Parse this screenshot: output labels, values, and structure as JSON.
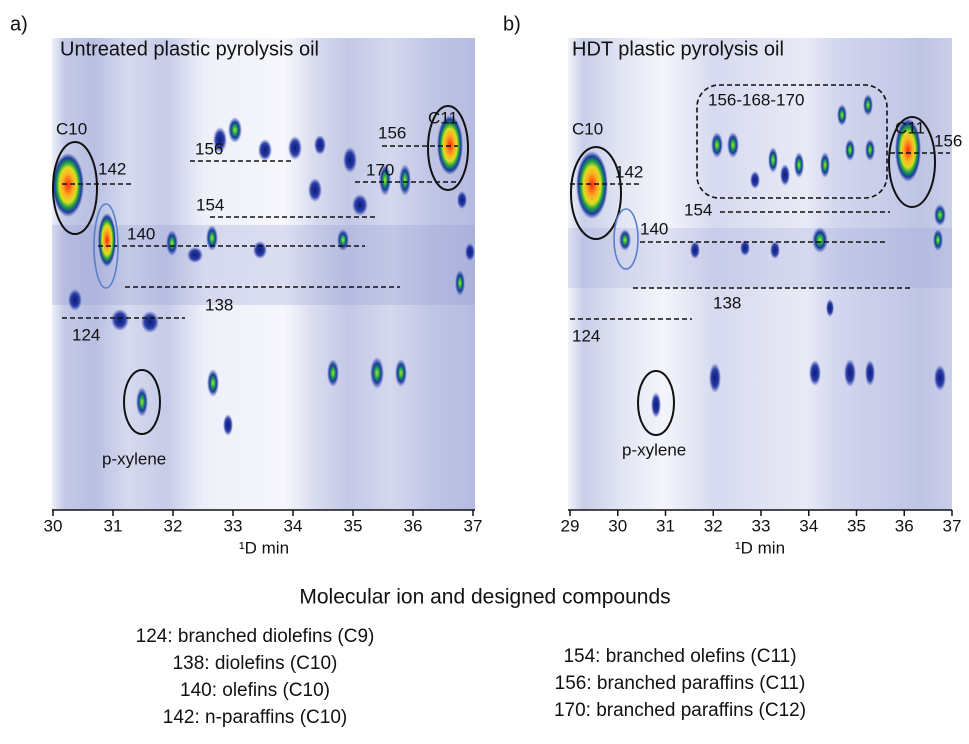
{
  "panels": [
    {
      "label": "a)",
      "title": "Untreated plastic pyrolysis oil",
      "annotations": [
        "C10",
        "142",
        "140",
        "156",
        "154",
        "138",
        "124",
        "170",
        "156",
        "C11",
        "p-xylene"
      ],
      "x_ticks": [
        30,
        31,
        32,
        33,
        34,
        35,
        36,
        37
      ],
      "x_label": "¹D min"
    },
    {
      "label": "b)",
      "title": "HDT plastic pyrolysis oil",
      "annotations": [
        "C10",
        "142",
        "140",
        "156-168-170",
        "C11",
        "156",
        "154",
        "138",
        "124",
        "p-xylene"
      ],
      "x_ticks": [
        29,
        30,
        31,
        32,
        33,
        34,
        35,
        36,
        37
      ],
      "x_label": "¹D min"
    }
  ],
  "legend": {
    "heading": "Molecular ion and designed compounds",
    "left": [
      "124: branched diolefins (C9)",
      "138: diolefins (C10)",
      "140: olefins (C10)",
      "142: n-paraffins (C10)"
    ],
    "right": [
      "154: branched olefins (C11)",
      "156: branched paraffins (C11)",
      "170: branched paraffins (C12)"
    ]
  }
}
